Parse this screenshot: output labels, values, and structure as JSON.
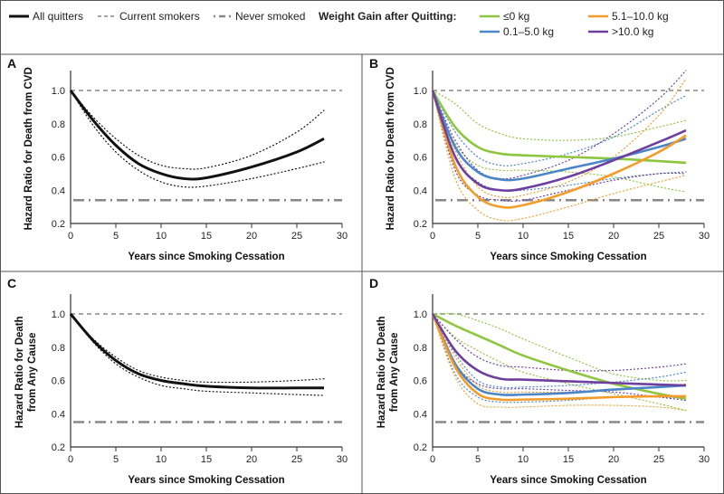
{
  "legend": {
    "all_quitters": "All quitters",
    "current_smokers": "Current smokers",
    "never_smoked": "Never smoked",
    "weight_title": "Weight Gain after Quitting:",
    "groups": [
      {
        "label": "≤0 kg",
        "color": "#8dc63f"
      },
      {
        "label": "0.1–5.0 kg",
        "color": "#4a86c8"
      },
      {
        "label": "5.1–10.0 kg",
        "color": "#f39c2a"
      },
      {
        "label": ">10.0 kg",
        "color": "#6f3fa0"
      }
    ]
  },
  "chart_data": [
    {
      "panel": "A",
      "type": "line",
      "xlabel": "Years since Smoking Cessation",
      "ylabel": [
        "Hazard Ratio for Death from CVD"
      ],
      "xlim": [
        0,
        30
      ],
      "ylim": [
        0.2,
        1.1
      ],
      "xticks": [
        "0",
        "5",
        "10",
        "15",
        "20",
        "25",
        "30"
      ],
      "yticks": [
        "0.2",
        "0.4",
        "0.6",
        "0.8",
        "1.0"
      ],
      "current_smokers": 1.0,
      "never_smoked": 0.34,
      "x": [
        0,
        2.5,
        5,
        7.5,
        10,
        12.5,
        15,
        20,
        25,
        28
      ],
      "series": [
        {
          "name": "All quitters",
          "color": "#111111",
          "values": [
            1,
            0.82,
            0.67,
            0.56,
            0.5,
            0.47,
            0.475,
            0.54,
            0.63,
            0.71
          ],
          "upper": [
            1,
            0.84,
            0.71,
            0.61,
            0.55,
            0.53,
            0.535,
            0.61,
            0.75,
            0.88
          ],
          "lower": [
            1,
            0.79,
            0.63,
            0.52,
            0.45,
            0.42,
            0.425,
            0.47,
            0.53,
            0.57
          ]
        }
      ]
    },
    {
      "panel": "B",
      "type": "line",
      "xlabel": "Years since Smoking Cessation",
      "ylabel": [
        "Hazard Ratio for Death from CVD"
      ],
      "xlim": [
        0,
        30
      ],
      "ylim": [
        0.2,
        1.1
      ],
      "xticks": [
        "0",
        "5",
        "10",
        "15",
        "20",
        "25",
        "30"
      ],
      "yticks": [
        "0.2",
        "0.4",
        "0.6",
        "0.8",
        "1.0"
      ],
      "current_smokers": 1.0,
      "never_smoked": 0.34,
      "x": [
        0,
        2.5,
        5,
        7.5,
        10,
        15,
        20,
        25,
        28
      ],
      "series": [
        {
          "name": "≤0 kg",
          "color": "#8dc63f",
          "values": [
            1,
            0.78,
            0.66,
            0.62,
            0.61,
            0.6,
            0.59,
            0.575,
            0.565
          ],
          "upper": [
            1,
            0.92,
            0.8,
            0.74,
            0.71,
            0.7,
            0.72,
            0.78,
            0.82
          ],
          "lower": [
            1,
            0.68,
            0.55,
            0.52,
            0.52,
            0.51,
            0.48,
            0.42,
            0.39
          ]
        },
        {
          "name": "0.1–5.0 kg",
          "color": "#4a86c8",
          "values": [
            1,
            0.66,
            0.51,
            0.465,
            0.47,
            0.53,
            0.59,
            0.66,
            0.71
          ],
          "upper": [
            1,
            0.75,
            0.6,
            0.55,
            0.56,
            0.62,
            0.72,
            0.88,
            0.97
          ],
          "lower": [
            1,
            0.6,
            0.45,
            0.4,
            0.4,
            0.43,
            0.47,
            0.5,
            0.51
          ]
        },
        {
          "name": "5.1–10.0 kg",
          "color": "#f39c2a",
          "values": [
            1,
            0.55,
            0.36,
            0.3,
            0.31,
            0.39,
            0.5,
            0.63,
            0.73
          ],
          "upper": [
            1,
            0.64,
            0.42,
            0.36,
            0.37,
            0.45,
            0.6,
            0.85,
            1.07
          ],
          "lower": [
            1,
            0.47,
            0.28,
            0.22,
            0.23,
            0.3,
            0.38,
            0.45,
            0.49
          ]
        },
        {
          "name": ">10.0 kg",
          "color": "#6f3fa0",
          "values": [
            1,
            0.6,
            0.44,
            0.4,
            0.41,
            0.48,
            0.58,
            0.69,
            0.76
          ],
          "upper": [
            1,
            0.7,
            0.52,
            0.47,
            0.49,
            0.58,
            0.74,
            0.95,
            1.12
          ],
          "lower": [
            1,
            0.52,
            0.37,
            0.34,
            0.34,
            0.4,
            0.46,
            0.5,
            0.5
          ]
        }
      ]
    },
    {
      "panel": "C",
      "type": "line",
      "xlabel": "Years since Smoking Cessation",
      "ylabel": [
        "Hazard Ratio for Death",
        "from Any Cause"
      ],
      "xlim": [
        0,
        30
      ],
      "ylim": [
        0.2,
        1.1
      ],
      "xticks": [
        "0",
        "5",
        "10",
        "15",
        "20",
        "25",
        "30"
      ],
      "yticks": [
        "0.2",
        "0.4",
        "0.6",
        "0.8",
        "1.0"
      ],
      "current_smokers": 1.0,
      "never_smoked": 0.35,
      "x": [
        0,
        2.5,
        5,
        7.5,
        10,
        12.5,
        15,
        20,
        25,
        28
      ],
      "series": [
        {
          "name": "All quitters",
          "color": "#111111",
          "values": [
            1,
            0.84,
            0.72,
            0.64,
            0.6,
            0.58,
            0.565,
            0.555,
            0.555,
            0.555
          ],
          "upper": [
            1,
            0.85,
            0.74,
            0.66,
            0.62,
            0.6,
            0.59,
            0.59,
            0.6,
            0.61
          ],
          "lower": [
            1,
            0.83,
            0.7,
            0.62,
            0.57,
            0.55,
            0.535,
            0.525,
            0.515,
            0.51
          ]
        }
      ]
    },
    {
      "panel": "D",
      "type": "line",
      "xlabel": "Years since Smoking Cessation",
      "ylabel": [
        "Hazard Ratio for Death",
        "from Any Cause"
      ],
      "xlim": [
        0,
        30
      ],
      "ylim": [
        0.2,
        1.1
      ],
      "xticks": [
        "0",
        "5",
        "10",
        "15",
        "20",
        "25",
        "30"
      ],
      "yticks": [
        "0.2",
        "0.4",
        "0.6",
        "0.8",
        "1.0"
      ],
      "current_smokers": 1.0,
      "never_smoked": 0.35,
      "x": [
        0,
        2.5,
        5,
        7.5,
        10,
        15,
        20,
        25,
        28
      ],
      "series": [
        {
          "name": "≤0 kg",
          "color": "#8dc63f",
          "values": [
            1,
            0.93,
            0.87,
            0.81,
            0.75,
            0.66,
            0.58,
            0.52,
            0.49
          ],
          "upper": [
            1,
            1,
            0.96,
            0.91,
            0.85,
            0.74,
            0.64,
            0.6,
            0.6
          ],
          "lower": [
            1,
            0.86,
            0.78,
            0.71,
            0.65,
            0.58,
            0.52,
            0.46,
            0.42
          ]
        },
        {
          "name": "0.1–5.0 kg",
          "color": "#4a86c8",
          "values": [
            1,
            0.7,
            0.55,
            0.515,
            0.515,
            0.525,
            0.545,
            0.56,
            0.57
          ],
          "upper": [
            1,
            0.76,
            0.6,
            0.56,
            0.56,
            0.57,
            0.59,
            0.62,
            0.65
          ],
          "lower": [
            1,
            0.64,
            0.5,
            0.47,
            0.47,
            0.48,
            0.5,
            0.5,
            0.49
          ]
        },
        {
          "name": "5.1–10.0 kg",
          "color": "#f39c2a",
          "values": [
            1,
            0.68,
            0.52,
            0.485,
            0.485,
            0.49,
            0.5,
            0.505,
            0.505
          ],
          "upper": [
            1,
            0.74,
            0.57,
            0.53,
            0.53,
            0.53,
            0.54,
            0.56,
            0.58
          ],
          "lower": [
            1,
            0.62,
            0.46,
            0.44,
            0.44,
            0.45,
            0.45,
            0.44,
            0.42
          ]
        },
        {
          "name": ">10.0 kg",
          "color": "#6f3fa0",
          "values": [
            1,
            0.78,
            0.66,
            0.61,
            0.605,
            0.595,
            0.585,
            0.575,
            0.57
          ],
          "upper": [
            1,
            0.85,
            0.74,
            0.69,
            0.68,
            0.66,
            0.66,
            0.68,
            0.7
          ],
          "lower": [
            1,
            0.7,
            0.58,
            0.55,
            0.55,
            0.54,
            0.53,
            0.5,
            0.48
          ]
        }
      ]
    }
  ]
}
